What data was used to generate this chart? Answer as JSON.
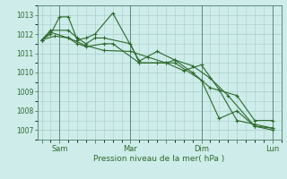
{
  "background_color": "#cdecea",
  "plot_bg_color": "#cdecea",
  "grid_color": "#aacfca",
  "line_color": "#2d6a2d",
  "marker_color": "#2d6a2d",
  "xlabel": "Pression niveau de la mer( hPa )",
  "ylim": [
    1006.5,
    1013.5
  ],
  "yticks": [
    1007,
    1008,
    1009,
    1010,
    1011,
    1012,
    1013
  ],
  "x_tick_labels": [
    "",
    "Sam",
    "",
    "Mar",
    "",
    "Dim",
    "",
    "Lun"
  ],
  "x_tick_positions": [
    0,
    2,
    6,
    10,
    14,
    18,
    22,
    26
  ],
  "day_vlines": [
    2,
    10,
    18,
    26
  ],
  "xlim": [
    -0.5,
    27
  ],
  "series": [
    {
      "x": [
        0,
        1,
        2,
        3,
        4,
        5,
        6,
        8,
        11,
        13,
        15,
        17,
        19,
        21,
        24,
        26
      ],
      "y": [
        1011.7,
        1012.0,
        1012.9,
        1012.9,
        1011.7,
        1011.8,
        1012.0,
        1013.1,
        1010.6,
        1011.1,
        1010.65,
        1010.35,
        1009.7,
        1008.8,
        1007.2,
        1007.1
      ]
    },
    {
      "x": [
        0,
        1,
        3,
        4,
        5,
        6,
        7,
        10,
        11,
        14,
        15,
        17,
        19,
        22,
        24,
        26
      ],
      "y": [
        1011.7,
        1012.2,
        1012.2,
        1011.8,
        1011.5,
        1011.8,
        1011.8,
        1011.5,
        1010.5,
        1010.5,
        1010.65,
        1010.0,
        1009.2,
        1008.8,
        1007.5,
        1007.5
      ]
    },
    {
      "x": [
        0,
        1,
        3,
        4,
        5,
        7,
        8,
        11,
        13,
        15,
        18,
        20,
        22,
        24,
        26
      ],
      "y": [
        1011.7,
        1012.1,
        1011.8,
        1011.5,
        1011.35,
        1011.5,
        1011.5,
        1010.5,
        1010.5,
        1010.5,
        1009.6,
        1007.6,
        1008.0,
        1007.2,
        1007.0
      ]
    },
    {
      "x": [
        0,
        1.5,
        3,
        5,
        7,
        10,
        12,
        14,
        16,
        18,
        20,
        22,
        24,
        26
      ],
      "y": [
        1011.7,
        1011.9,
        1011.8,
        1011.4,
        1011.15,
        1011.1,
        1010.8,
        1010.5,
        1010.1,
        1010.4,
        1009.1,
        1007.5,
        1007.3,
        1007.1
      ]
    }
  ]
}
